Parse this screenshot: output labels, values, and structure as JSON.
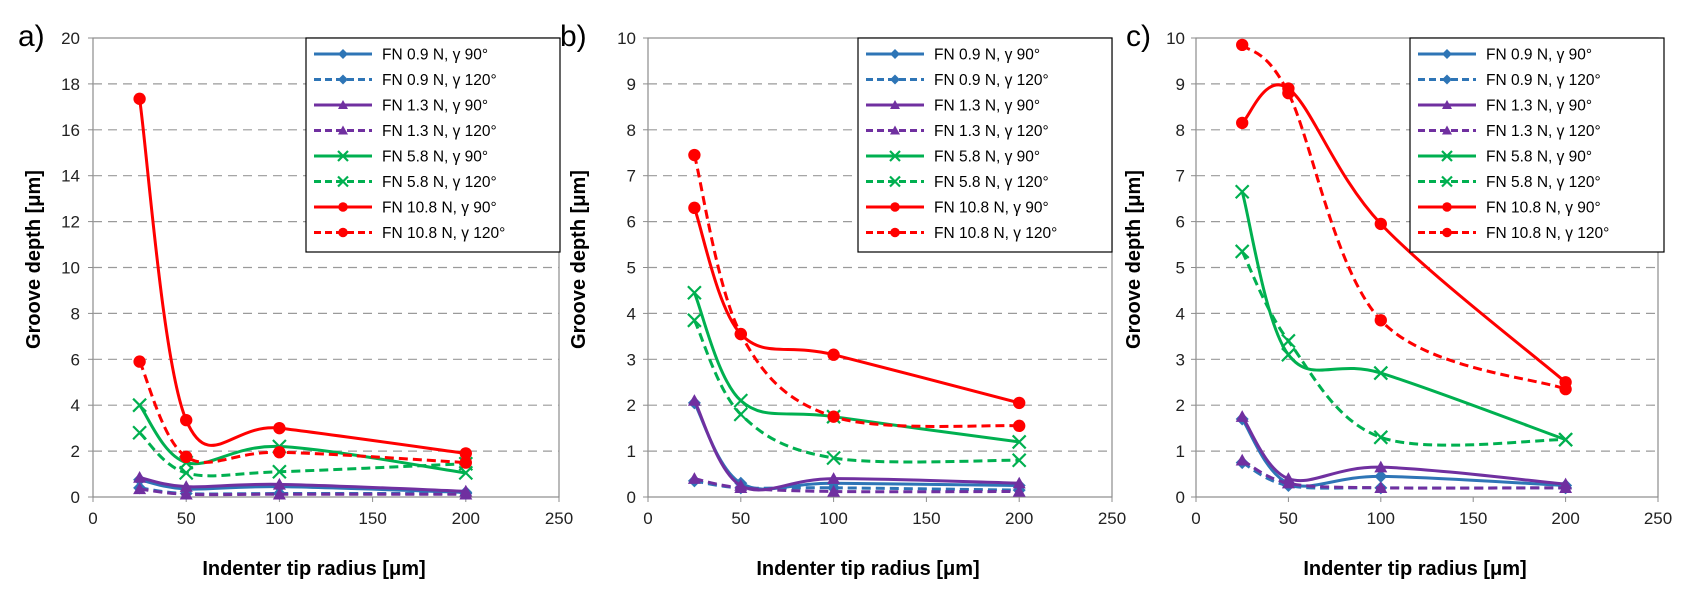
{
  "chart_data": [
    {
      "type": "line",
      "panel_label": "a)",
      "xlabel": "Indenter  tip radius [μm]",
      "ylabel": "Groove depth [μm]",
      "xlim": [
        0,
        250
      ],
      "ylim": [
        0,
        20
      ],
      "xticks": [
        "0",
        "50",
        "100",
        "150",
        "200",
        "250"
      ],
      "yticks": [
        "0",
        "2",
        "4",
        "6",
        "8",
        "10",
        "12",
        "14",
        "16",
        "18",
        "20"
      ],
      "grid": "horizontal dashed",
      "legend_position": "top-right",
      "x": [
        25,
        50,
        100,
        200
      ],
      "series": [
        {
          "name": "FN 0.9 N, γ 90°",
          "values": [
            0.75,
            0.35,
            0.45,
            0.2
          ]
        },
        {
          "name": "FN 0.9 N, γ 120°",
          "values": [
            0.4,
            0.15,
            0.15,
            0.15
          ]
        },
        {
          "name": "FN 1.3 N, γ 90°",
          "values": [
            0.85,
            0.45,
            0.55,
            0.25
          ]
        },
        {
          "name": "FN 1.3 N, γ 120°",
          "values": [
            0.35,
            0.12,
            0.12,
            0.12
          ]
        },
        {
          "name": "FN 5.8 N, γ 90°",
          "values": [
            4.0,
            1.5,
            2.2,
            1.05
          ]
        },
        {
          "name": "FN 5.8 N, γ 120°",
          "values": [
            2.8,
            1.05,
            1.1,
            1.45
          ]
        },
        {
          "name": "FN 10.8 N, γ 90°",
          "values": [
            17.35,
            3.35,
            3.0,
            1.9
          ]
        },
        {
          "name": "FN 10.8 N, γ 120°",
          "values": [
            5.9,
            1.75,
            1.95,
            1.5
          ]
        }
      ]
    },
    {
      "type": "line",
      "panel_label": "b)",
      "xlabel": "Indenter  tip radius [μm]",
      "ylabel": "Groove depth [μm]",
      "xlim": [
        0,
        250
      ],
      "ylim": [
        0,
        10
      ],
      "xticks": [
        "0",
        "50",
        "100",
        "150",
        "200",
        "250"
      ],
      "yticks": [
        "0",
        "1",
        "2",
        "3",
        "4",
        "5",
        "6",
        "7",
        "8",
        "9",
        "10"
      ],
      "grid": "horizontal dashed",
      "legend_position": "top-right",
      "x": [
        25,
        50,
        100,
        200
      ],
      "series": [
        {
          "name": "FN 0.9 N, γ 90°",
          "values": [
            2.05,
            0.3,
            0.3,
            0.25
          ]
        },
        {
          "name": "FN 0.9 N, γ 120°",
          "values": [
            0.35,
            0.2,
            0.2,
            0.15
          ]
        },
        {
          "name": "FN 1.3 N, γ 90°",
          "values": [
            2.1,
            0.25,
            0.4,
            0.3
          ]
        },
        {
          "name": "FN 1.3 N, γ 120°",
          "values": [
            0.4,
            0.2,
            0.12,
            0.12
          ]
        },
        {
          "name": "FN 5.8 N, γ 90°",
          "values": [
            4.45,
            2.1,
            1.75,
            1.2
          ]
        },
        {
          "name": "FN 5.8 N, γ 120°",
          "values": [
            3.85,
            1.8,
            0.85,
            0.8
          ]
        },
        {
          "name": "FN 10.8 N, γ 90°",
          "values": [
            6.3,
            3.55,
            3.1,
            2.05
          ]
        },
        {
          "name": "FN 10.8 N, γ 120°",
          "values": [
            7.45,
            3.55,
            1.75,
            1.55
          ]
        }
      ]
    },
    {
      "type": "line",
      "panel_label": "c)",
      "xlabel": "Indenter  tip radius [μm]",
      "ylabel": "Groove depth [μm]",
      "xlim": [
        0,
        250
      ],
      "ylim": [
        0,
        10
      ],
      "xticks": [
        "0",
        "50",
        "100",
        "150",
        "200",
        "250"
      ],
      "yticks": [
        "0",
        "1",
        "2",
        "3",
        "4",
        "5",
        "6",
        "7",
        "8",
        "9",
        "10"
      ],
      "grid": "horizontal dashed",
      "legend_position": "top-right",
      "x": [
        25,
        50,
        100,
        200
      ],
      "series": [
        {
          "name": "FN 0.9 N, γ 90°",
          "values": [
            1.7,
            0.3,
            0.45,
            0.25
          ]
        },
        {
          "name": "FN 0.9 N, γ 120°",
          "values": [
            0.75,
            0.25,
            0.2,
            0.2
          ]
        },
        {
          "name": "FN 1.3 N, γ 90°",
          "values": [
            1.75,
            0.4,
            0.65,
            0.28
          ]
        },
        {
          "name": "FN 1.3 N, γ 120°",
          "values": [
            0.8,
            0.3,
            0.2,
            0.2
          ]
        },
        {
          "name": "FN 5.8 N, γ 90°",
          "values": [
            6.65,
            3.1,
            2.7,
            1.25
          ]
        },
        {
          "name": "FN 5.8 N, γ 120°",
          "values": [
            5.35,
            3.4,
            1.3,
            1.25
          ]
        },
        {
          "name": "FN 10.8 N, γ 90°",
          "values": [
            8.15,
            8.9,
            5.95,
            2.5
          ]
        },
        {
          "name": "FN 10.8 N, γ 120°",
          "values": [
            9.85,
            8.8,
            3.85,
            2.35
          ]
        }
      ]
    }
  ],
  "series_styles": [
    {
      "color": "#2e75b6",
      "dash": "solid",
      "marker": "diamond"
    },
    {
      "color": "#2e75b6",
      "dash": "dashed",
      "marker": "diamond"
    },
    {
      "color": "#7030a0",
      "dash": "solid",
      "marker": "triangle"
    },
    {
      "color": "#7030a0",
      "dash": "dashed",
      "marker": "triangle"
    },
    {
      "color": "#00b050",
      "dash": "solid",
      "marker": "x"
    },
    {
      "color": "#00b050",
      "dash": "dashed",
      "marker": "x"
    },
    {
      "color": "#ff0000",
      "dash": "solid",
      "marker": "circle"
    },
    {
      "color": "#ff0000",
      "dash": "dashed",
      "marker": "circle"
    }
  ]
}
